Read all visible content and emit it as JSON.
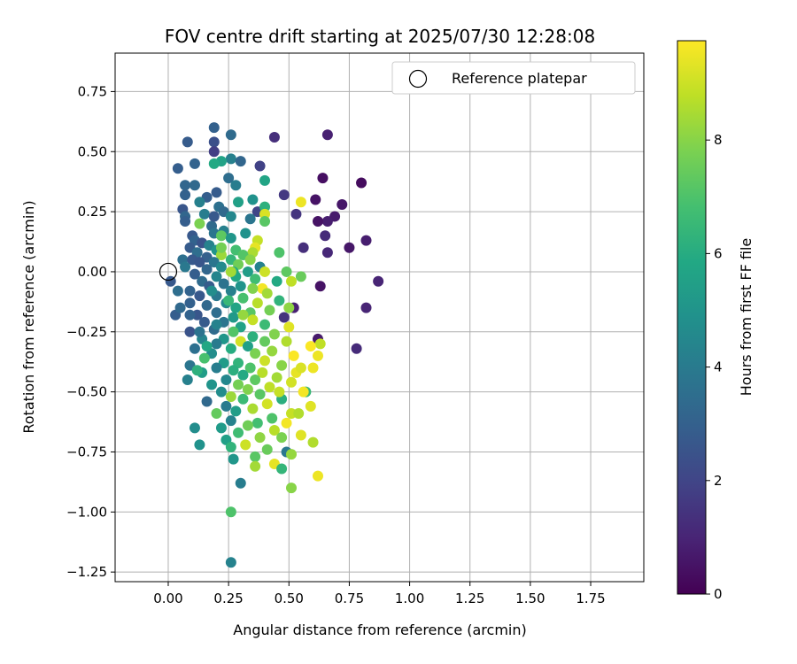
{
  "chart_data": {
    "type": "scatter",
    "title": "FOV centre drift starting at 2025/07/30 12:28:08",
    "xlabel": "Angular distance from reference (arcmin)",
    "ylabel": "Rotation from reference (arcmin)",
    "xlim": [
      -0.22,
      1.97
    ],
    "ylim": [
      -1.29,
      0.91
    ],
    "xticks": [
      0.0,
      0.25,
      0.5,
      0.75,
      1.0,
      1.25,
      1.5,
      1.75
    ],
    "xtick_labels": [
      "0.00",
      "0.25",
      "0.50",
      "0.75",
      "1.00",
      "1.25",
      "1.50",
      "1.75"
    ],
    "yticks": [
      0.75,
      0.5,
      0.25,
      0.0,
      -0.25,
      -0.5,
      -0.75,
      -1.0,
      -1.25
    ],
    "ytick_labels": [
      "0.75",
      "0.50",
      "0.25",
      "0.00",
      "−0.25",
      "−0.50",
      "−0.75",
      "−1.00",
      "−1.25"
    ],
    "grid": true,
    "legend": {
      "position": "top-right",
      "entries": [
        "Reference platepar"
      ]
    },
    "reference_point": {
      "x": 0.0,
      "y": 0.0
    },
    "colorbar": {
      "label": "Hours from first FF file",
      "colormap": "viridis",
      "range": [
        0,
        9.75
      ],
      "ticks": [
        0,
        2,
        4,
        6,
        8
      ],
      "tick_labels": [
        "0",
        "2",
        "4",
        "6",
        "8"
      ]
    },
    "points": [
      {
        "x": 0.66,
        "y": 0.57,
        "c": 0.9
      },
      {
        "x": 0.44,
        "y": 0.56,
        "c": 1.3
      },
      {
        "x": 0.64,
        "y": 0.39,
        "c": 0.4
      },
      {
        "x": 0.8,
        "y": 0.37,
        "c": 0.3
      },
      {
        "x": 0.61,
        "y": 0.3,
        "c": 0.5
      },
      {
        "x": 0.72,
        "y": 0.28,
        "c": 0.6
      },
      {
        "x": 0.69,
        "y": 0.23,
        "c": 0.7
      },
      {
        "x": 0.66,
        "y": 0.21,
        "c": 0.8
      },
      {
        "x": 0.62,
        "y": 0.21,
        "c": 0.5
      },
      {
        "x": 0.53,
        "y": 0.24,
        "c": 1.5
      },
      {
        "x": 0.48,
        "y": 0.32,
        "c": 1.6
      },
      {
        "x": 0.65,
        "y": 0.15,
        "c": 1.2
      },
      {
        "x": 0.75,
        "y": 0.1,
        "c": 0.6
      },
      {
        "x": 0.82,
        "y": 0.13,
        "c": 0.8
      },
      {
        "x": 0.56,
        "y": 0.1,
        "c": 1.3
      },
      {
        "x": 0.66,
        "y": 0.08,
        "c": 1.1
      },
      {
        "x": 0.87,
        "y": -0.04,
        "c": 1.0
      },
      {
        "x": 0.63,
        "y": -0.06,
        "c": 0.5
      },
      {
        "x": 0.82,
        "y": -0.15,
        "c": 1.0
      },
      {
        "x": 0.78,
        "y": -0.32,
        "c": 1.2
      },
      {
        "x": 0.62,
        "y": -0.28,
        "c": 0.7
      },
      {
        "x": 0.52,
        "y": -0.15,
        "c": 0.9
      },
      {
        "x": 0.37,
        "y": 0.25,
        "c": 2.0
      },
      {
        "x": 0.38,
        "y": 0.44,
        "c": 1.9
      },
      {
        "x": 0.19,
        "y": 0.6,
        "c": 3.0
      },
      {
        "x": 0.26,
        "y": 0.57,
        "c": 3.4
      },
      {
        "x": 0.08,
        "y": 0.54,
        "c": 2.8
      },
      {
        "x": 0.19,
        "y": 0.54,
        "c": 2.4
      },
      {
        "x": 0.19,
        "y": 0.5,
        "c": 1.8
      },
      {
        "x": 0.26,
        "y": 0.47,
        "c": 4.2
      },
      {
        "x": 0.3,
        "y": 0.46,
        "c": 3.2
      },
      {
        "x": 0.22,
        "y": 0.46,
        "c": 5.6
      },
      {
        "x": 0.19,
        "y": 0.45,
        "c": 5.9
      },
      {
        "x": 0.11,
        "y": 0.45,
        "c": 3.1
      },
      {
        "x": 0.04,
        "y": 0.43,
        "c": 2.9
      },
      {
        "x": 0.25,
        "y": 0.39,
        "c": 3.5
      },
      {
        "x": 0.4,
        "y": 0.38,
        "c": 5.7
      },
      {
        "x": 0.28,
        "y": 0.36,
        "c": 4.1
      },
      {
        "x": 0.07,
        "y": 0.36,
        "c": 3.2
      },
      {
        "x": 0.11,
        "y": 0.36,
        "c": 3.3
      },
      {
        "x": 0.2,
        "y": 0.33,
        "c": 2.8
      },
      {
        "x": 0.07,
        "y": 0.32,
        "c": 3.0
      },
      {
        "x": 0.16,
        "y": 0.31,
        "c": 2.9
      },
      {
        "x": 0.35,
        "y": 0.3,
        "c": 4.9
      },
      {
        "x": 0.13,
        "y": 0.29,
        "c": 4.2
      },
      {
        "x": 0.29,
        "y": 0.29,
        "c": 5.5
      },
      {
        "x": 0.4,
        "y": 0.27,
        "c": 6.2
      },
      {
        "x": 0.21,
        "y": 0.27,
        "c": 3.6
      },
      {
        "x": 0.06,
        "y": 0.26,
        "c": 2.6
      },
      {
        "x": 0.23,
        "y": 0.25,
        "c": 3.3
      },
      {
        "x": 0.15,
        "y": 0.24,
        "c": 4.1
      },
      {
        "x": 0.4,
        "y": 0.24,
        "c": 9.2
      },
      {
        "x": 0.55,
        "y": 0.29,
        "c": 9.5
      },
      {
        "x": 0.07,
        "y": 0.23,
        "c": 3.2
      },
      {
        "x": 0.26,
        "y": 0.23,
        "c": 4.5
      },
      {
        "x": 0.34,
        "y": 0.22,
        "c": 3.8
      },
      {
        "x": 0.07,
        "y": 0.21,
        "c": 2.9
      },
      {
        "x": 0.4,
        "y": 0.21,
        "c": 7.2
      },
      {
        "x": 0.13,
        "y": 0.2,
        "c": 7.8
      },
      {
        "x": 0.18,
        "y": 0.19,
        "c": 3.4
      },
      {
        "x": 0.23,
        "y": 0.17,
        "c": 4.2
      },
      {
        "x": 0.32,
        "y": 0.16,
        "c": 4.9
      },
      {
        "x": 0.19,
        "y": 0.16,
        "c": 3.8
      },
      {
        "x": 0.1,
        "y": 0.15,
        "c": 2.7
      },
      {
        "x": 0.22,
        "y": 0.15,
        "c": 7.3
      },
      {
        "x": 0.26,
        "y": 0.14,
        "c": 5.1
      },
      {
        "x": 0.37,
        "y": 0.13,
        "c": 8.9
      },
      {
        "x": 0.11,
        "y": 0.13,
        "c": 3.1
      },
      {
        "x": 0.14,
        "y": 0.12,
        "c": 2.5
      },
      {
        "x": 0.17,
        "y": 0.11,
        "c": 4.3
      },
      {
        "x": 0.36,
        "y": 0.1,
        "c": 9.4
      },
      {
        "x": 0.09,
        "y": 0.1,
        "c": 2.8
      },
      {
        "x": 0.2,
        "y": 0.09,
        "c": 5.0
      },
      {
        "x": 0.28,
        "y": 0.09,
        "c": 6.8
      },
      {
        "x": 0.12,
        "y": 0.08,
        "c": 3.5
      },
      {
        "x": 0.35,
        "y": 0.08,
        "c": 8.5
      },
      {
        "x": 0.46,
        "y": 0.08,
        "c": 7.0
      },
      {
        "x": 0.22,
        "y": 0.07,
        "c": 8.3
      },
      {
        "x": 0.31,
        "y": 0.07,
        "c": 7.1
      },
      {
        "x": 0.16,
        "y": 0.06,
        "c": 3.0
      },
      {
        "x": 0.06,
        "y": 0.05,
        "c": 3.6
      },
      {
        "x": 0.26,
        "y": 0.05,
        "c": 6.4
      },
      {
        "x": 0.1,
        "y": 0.05,
        "c": 2.7
      },
      {
        "x": 0.34,
        "y": 0.05,
        "c": 8.0
      },
      {
        "x": 0.19,
        "y": 0.04,
        "c": 3.8
      },
      {
        "x": 0.13,
        "y": 0.04,
        "c": 2.6
      },
      {
        "x": 0.29,
        "y": 0.03,
        "c": 7.6
      },
      {
        "x": 0.07,
        "y": 0.02,
        "c": 3.9
      },
      {
        "x": 0.22,
        "y": 0.02,
        "c": 4.6
      },
      {
        "x": 0.38,
        "y": 0.02,
        "c": 4.3
      },
      {
        "x": 0.16,
        "y": 0.01,
        "c": 3.2
      },
      {
        "x": 0.27,
        "y": 0.0,
        "c": 6.0
      },
      {
        "x": 0.33,
        "y": 0.0,
        "c": 5.4
      },
      {
        "x": 0.4,
        "y": 0.0,
        "c": 9.0
      },
      {
        "x": 0.11,
        "y": -0.01,
        "c": 2.9
      },
      {
        "x": 0.49,
        "y": 0.0,
        "c": 7.3
      },
      {
        "x": 0.2,
        "y": -0.02,
        "c": 4.4
      },
      {
        "x": 0.28,
        "y": -0.02,
        "c": 5.8
      },
      {
        "x": 0.36,
        "y": -0.03,
        "c": 6.7
      },
      {
        "x": 0.14,
        "y": -0.04,
        "c": 3.4
      },
      {
        "x": 0.45,
        "y": -0.04,
        "c": 5.9
      },
      {
        "x": 0.51,
        "y": -0.04,
        "c": 8.8
      },
      {
        "x": 0.55,
        "y": -0.02,
        "c": 7.5
      },
      {
        "x": 0.01,
        "y": -0.04,
        "c": 2.7
      },
      {
        "x": 0.23,
        "y": -0.05,
        "c": 3.7
      },
      {
        "x": 0.3,
        "y": -0.06,
        "c": 5.0
      },
      {
        "x": 0.17,
        "y": -0.06,
        "c": 2.8
      },
      {
        "x": 0.39,
        "y": -0.07,
        "c": 9.6
      },
      {
        "x": 0.35,
        "y": -0.07,
        "c": 7.9
      },
      {
        "x": 0.09,
        "y": -0.08,
        "c": 3.1
      },
      {
        "x": 0.04,
        "y": -0.08,
        "c": 3.5
      },
      {
        "x": 0.26,
        "y": -0.08,
        "c": 4.2
      },
      {
        "x": 0.41,
        "y": -0.09,
        "c": 8.4
      },
      {
        "x": 0.2,
        "y": -0.1,
        "c": 3.9
      },
      {
        "x": 0.13,
        "y": -0.1,
        "c": 2.7
      },
      {
        "x": 0.31,
        "y": -0.11,
        "c": 6.9
      },
      {
        "x": 0.46,
        "y": -0.12,
        "c": 6.3
      },
      {
        "x": 0.37,
        "y": -0.13,
        "c": 8.7
      },
      {
        "x": 0.24,
        "y": -0.13,
        "c": 4.6
      },
      {
        "x": 0.09,
        "y": -0.13,
        "c": 3.0
      },
      {
        "x": 0.16,
        "y": -0.14,
        "c": 3.3
      },
      {
        "x": 0.5,
        "y": -0.15,
        "c": 8.1
      },
      {
        "x": 0.28,
        "y": -0.15,
        "c": 5.7
      },
      {
        "x": 0.42,
        "y": -0.16,
        "c": 7.7
      },
      {
        "x": 0.34,
        "y": -0.17,
        "c": 7.2
      },
      {
        "x": 0.2,
        "y": -0.17,
        "c": 3.5
      },
      {
        "x": 0.12,
        "y": -0.18,
        "c": 2.6
      },
      {
        "x": 0.03,
        "y": -0.18,
        "c": 2.9
      },
      {
        "x": 0.09,
        "y": -0.18,
        "c": 3.1
      },
      {
        "x": 0.48,
        "y": -0.19,
        "c": 1.4
      },
      {
        "x": 0.27,
        "y": -0.19,
        "c": 5.2
      },
      {
        "x": 0.35,
        "y": -0.2,
        "c": 8.9
      },
      {
        "x": 0.23,
        "y": -0.21,
        "c": 3.8
      },
      {
        "x": 0.15,
        "y": -0.21,
        "c": 2.8
      },
      {
        "x": 0.4,
        "y": -0.22,
        "c": 6.6
      },
      {
        "x": 0.3,
        "y": -0.23,
        "c": 5.6
      },
      {
        "x": 0.5,
        "y": -0.23,
        "c": 9.3
      },
      {
        "x": 0.19,
        "y": -0.24,
        "c": 3.4
      },
      {
        "x": 0.09,
        "y": -0.25,
        "c": 2.5
      },
      {
        "x": 0.27,
        "y": -0.25,
        "c": 7.1
      },
      {
        "x": 0.44,
        "y": -0.26,
        "c": 7.9
      },
      {
        "x": 0.35,
        "y": -0.27,
        "c": 6.2
      },
      {
        "x": 0.14,
        "y": -0.28,
        "c": 4.4
      },
      {
        "x": 0.23,
        "y": -0.28,
        "c": 5.1
      },
      {
        "x": 0.4,
        "y": -0.29,
        "c": 7.4
      },
      {
        "x": 0.3,
        "y": -0.29,
        "c": 9.1
      },
      {
        "x": 0.49,
        "y": -0.29,
        "c": 8.6
      },
      {
        "x": 0.2,
        "y": -0.3,
        "c": 4.0
      },
      {
        "x": 0.33,
        "y": -0.31,
        "c": 5.5
      },
      {
        "x": 0.11,
        "y": -0.32,
        "c": 3.6
      },
      {
        "x": 0.26,
        "y": -0.32,
        "c": 6.0
      },
      {
        "x": 0.43,
        "y": -0.33,
        "c": 8.2
      },
      {
        "x": 0.36,
        "y": -0.34,
        "c": 7.8
      },
      {
        "x": 0.18,
        "y": -0.34,
        "c": 4.7
      },
      {
        "x": 0.52,
        "y": -0.35,
        "c": 9.7
      },
      {
        "x": 0.62,
        "y": -0.35,
        "c": 9.5
      },
      {
        "x": 0.15,
        "y": -0.36,
        "c": 6.9
      },
      {
        "x": 0.4,
        "y": -0.37,
        "c": 9.0
      },
      {
        "x": 0.29,
        "y": -0.38,
        "c": 6.3
      },
      {
        "x": 0.23,
        "y": -0.38,
        "c": 5.3
      },
      {
        "x": 0.47,
        "y": -0.39,
        "c": 8.0
      },
      {
        "x": 0.34,
        "y": -0.4,
        "c": 7.0
      },
      {
        "x": 0.09,
        "y": -0.39,
        "c": 3.8
      },
      {
        "x": 0.2,
        "y": -0.4,
        "c": 4.1
      },
      {
        "x": 0.27,
        "y": -0.41,
        "c": 6.1
      },
      {
        "x": 0.39,
        "y": -0.42,
        "c": 8.7
      },
      {
        "x": 0.14,
        "y": -0.42,
        "c": 5.4
      },
      {
        "x": 0.53,
        "y": -0.42,
        "c": 9.4
      },
      {
        "x": 0.31,
        "y": -0.43,
        "c": 5.9
      },
      {
        "x": 0.45,
        "y": -0.44,
        "c": 8.4
      },
      {
        "x": 0.24,
        "y": -0.45,
        "c": 4.5
      },
      {
        "x": 0.08,
        "y": -0.45,
        "c": 4.2
      },
      {
        "x": 0.36,
        "y": -0.45,
        "c": 7.3
      },
      {
        "x": 0.51,
        "y": -0.46,
        "c": 9.1
      },
      {
        "x": 0.18,
        "y": -0.47,
        "c": 5.0
      },
      {
        "x": 0.29,
        "y": -0.47,
        "c": 7.7
      },
      {
        "x": 0.42,
        "y": -0.48,
        "c": 8.8
      },
      {
        "x": 0.33,
        "y": -0.49,
        "c": 7.9
      },
      {
        "x": 0.57,
        "y": -0.5,
        "c": 6.5
      },
      {
        "x": 0.22,
        "y": -0.5,
        "c": 4.7
      },
      {
        "x": 0.38,
        "y": -0.51,
        "c": 7.2
      },
      {
        "x": 0.26,
        "y": -0.52,
        "c": 8.3
      },
      {
        "x": 0.47,
        "y": -0.53,
        "c": 6.1
      },
      {
        "x": 0.31,
        "y": -0.53,
        "c": 6.6
      },
      {
        "x": 0.16,
        "y": -0.54,
        "c": 3.3
      },
      {
        "x": 0.41,
        "y": -0.55,
        "c": 9.1
      },
      {
        "x": 0.24,
        "y": -0.56,
        "c": 4.0
      },
      {
        "x": 0.35,
        "y": -0.57,
        "c": 8.5
      },
      {
        "x": 0.28,
        "y": -0.58,
        "c": 5.4
      },
      {
        "x": 0.2,
        "y": -0.59,
        "c": 7.4
      },
      {
        "x": 0.51,
        "y": -0.59,
        "c": 8.9
      },
      {
        "x": 0.43,
        "y": -0.61,
        "c": 7.0
      },
      {
        "x": 0.26,
        "y": -0.62,
        "c": 4.3
      },
      {
        "x": 0.37,
        "y": -0.63,
        "c": 6.8
      },
      {
        "x": 0.49,
        "y": -0.63,
        "c": 9.6
      },
      {
        "x": 0.33,
        "y": -0.64,
        "c": 7.6
      },
      {
        "x": 0.22,
        "y": -0.65,
        "c": 5.3
      },
      {
        "x": 0.11,
        "y": -0.65,
        "c": 4.7
      },
      {
        "x": 0.44,
        "y": -0.66,
        "c": 8.7
      },
      {
        "x": 0.29,
        "y": -0.67,
        "c": 6.7
      },
      {
        "x": 0.55,
        "y": -0.68,
        "c": 9.3
      },
      {
        "x": 0.38,
        "y": -0.69,
        "c": 8.1
      },
      {
        "x": 0.47,
        "y": -0.69,
        "c": 7.8
      },
      {
        "x": 0.24,
        "y": -0.7,
        "c": 5.5
      },
      {
        "x": 0.6,
        "y": -0.71,
        "c": 8.6
      },
      {
        "x": 0.32,
        "y": -0.72,
        "c": 9.0
      },
      {
        "x": 0.13,
        "y": -0.72,
        "c": 4.9
      },
      {
        "x": 0.26,
        "y": -0.73,
        "c": 6.3
      },
      {
        "x": 0.41,
        "y": -0.74,
        "c": 7.5
      },
      {
        "x": 0.49,
        "y": -0.75,
        "c": 3.9
      },
      {
        "x": 0.51,
        "y": -0.76,
        "c": 8.2
      },
      {
        "x": 0.36,
        "y": -0.77,
        "c": 7.2
      },
      {
        "x": 0.27,
        "y": -0.78,
        "c": 5.1
      },
      {
        "x": 0.44,
        "y": -0.8,
        "c": 9.4
      },
      {
        "x": 0.36,
        "y": -0.81,
        "c": 8.4
      },
      {
        "x": 0.47,
        "y": -0.82,
        "c": 6.4
      },
      {
        "x": 0.62,
        "y": -0.85,
        "c": 9.5
      },
      {
        "x": 0.3,
        "y": -0.88,
        "c": 4.1
      },
      {
        "x": 0.51,
        "y": -0.9,
        "c": 8.0
      },
      {
        "x": 0.26,
        "y": -1.0,
        "c": 7.0
      },
      {
        "x": 0.26,
        "y": -1.21,
        "c": 4.3
      },
      {
        "x": 0.63,
        "y": -0.3,
        "c": 8.8
      },
      {
        "x": 0.59,
        "y": -0.31,
        "c": 9.7
      },
      {
        "x": 0.55,
        "y": -0.4,
        "c": 9.2
      },
      {
        "x": 0.6,
        "y": -0.4,
        "c": 9.5
      },
      {
        "x": 0.56,
        "y": -0.5,
        "c": 9.6
      },
      {
        "x": 0.46,
        "y": -0.5,
        "c": 8.9
      },
      {
        "x": 0.59,
        "y": -0.56,
        "c": 9.3
      },
      {
        "x": 0.54,
        "y": -0.59,
        "c": 8.6
      },
      {
        "x": 0.2,
        "y": -0.22,
        "c": 4.3
      },
      {
        "x": 0.16,
        "y": -0.31,
        "c": 5.8
      },
      {
        "x": 0.12,
        "y": -0.41,
        "c": 6.2
      },
      {
        "x": 0.22,
        "y": 0.1,
        "c": 7.7
      },
      {
        "x": 0.26,
        "y": 0.0,
        "c": 8.4
      },
      {
        "x": 0.25,
        "y": -0.12,
        "c": 6.5
      },
      {
        "x": 0.31,
        "y": -0.18,
        "c": 8.2
      },
      {
        "x": 0.18,
        "y": -0.08,
        "c": 4.7
      },
      {
        "x": 0.13,
        "y": -0.25,
        "c": 3.7
      },
      {
        "x": 0.05,
        "y": -0.15,
        "c": 3.3
      },
      {
        "x": 0.19,
        "y": 0.23,
        "c": 2.7
      }
    ]
  }
}
